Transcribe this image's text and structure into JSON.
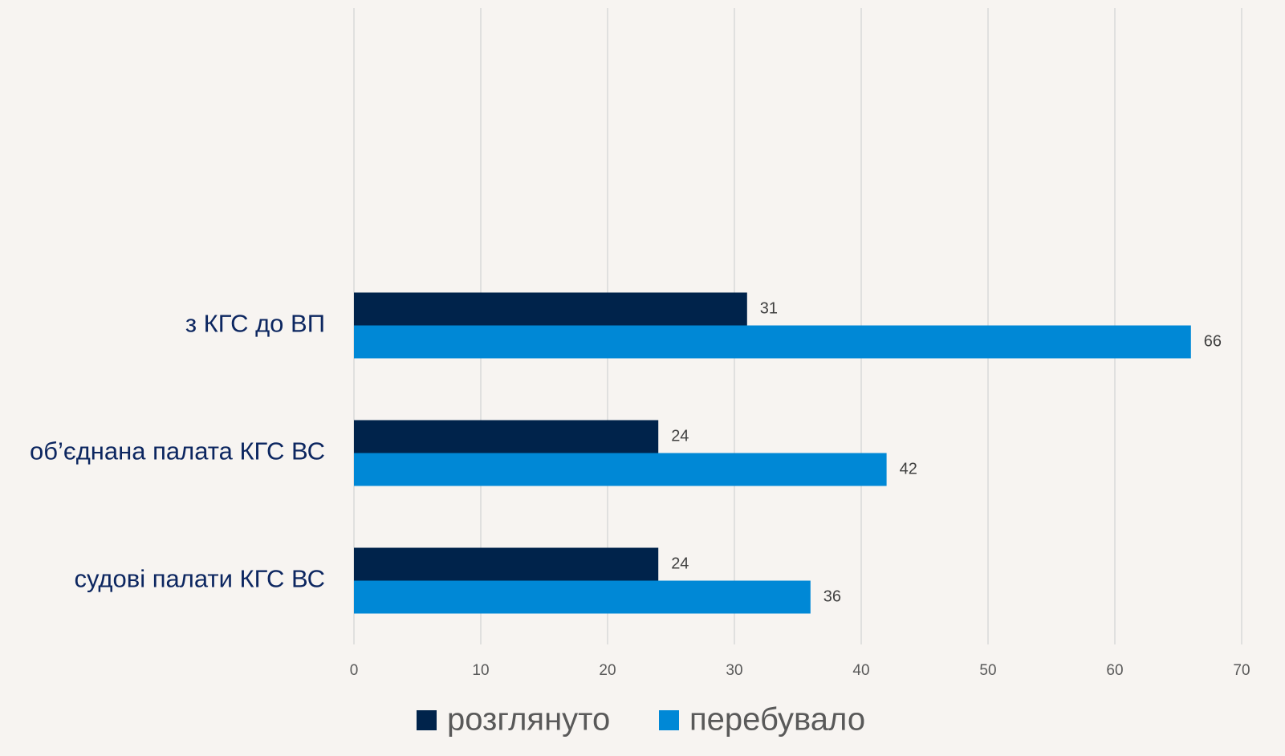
{
  "chart_data": {
    "type": "bar",
    "orientation": "horizontal",
    "categories": [
      "з КГС до ВП",
      "об’єднана палата КГС ВС",
      "судові палати КГС ВС"
    ],
    "series": [
      {
        "name": "розглянуто",
        "color": "#00234b",
        "values": [
          31,
          24,
          24
        ]
      },
      {
        "name": "перебувало",
        "color": "#0088d6",
        "values": [
          66,
          42,
          36
        ]
      }
    ],
    "xlim": [
      0,
      70
    ],
    "xticks": [
      0,
      10,
      20,
      30,
      40,
      50,
      60,
      70
    ],
    "grid": true,
    "legend": "bottom"
  }
}
